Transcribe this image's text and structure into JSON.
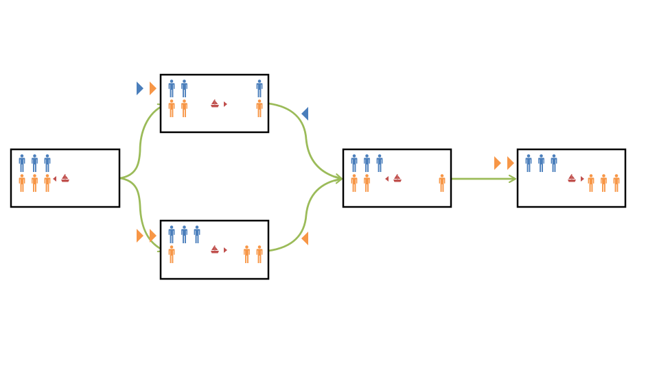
{
  "colors": {
    "missionary": "#4a7ebb",
    "cannibal": "#f79646",
    "boat": "#c0504d",
    "arrow": "#9bbb59",
    "border": "#000000",
    "background": "#ffffff"
  },
  "icons": {
    "missionary": "person-icon",
    "cannibal": "person-icon",
    "boat": "sailboat-icon",
    "direction": "triangle-icon"
  },
  "states": [
    {
      "id": "start",
      "left_bank": {
        "missionaries": 3,
        "cannibals": 3
      },
      "right_bank": {
        "missionaries": 0,
        "cannibals": 0
      },
      "boat_side": "left",
      "boat_heading": "left"
    },
    {
      "id": "upper",
      "left_bank": {
        "missionaries": 2,
        "cannibals": 2
      },
      "right_bank": {
        "missionaries": 1,
        "cannibals": 1
      },
      "boat_side": "right",
      "boat_heading": "right"
    },
    {
      "id": "lower",
      "left_bank": {
        "missionaries": 3,
        "cannibals": 1
      },
      "right_bank": {
        "missionaries": 0,
        "cannibals": 2
      },
      "boat_side": "right",
      "boat_heading": "right"
    },
    {
      "id": "merged",
      "left_bank": {
        "missionaries": 3,
        "cannibals": 2
      },
      "right_bank": {
        "missionaries": 0,
        "cannibals": 1
      },
      "boat_side": "left",
      "boat_heading": "left"
    },
    {
      "id": "final",
      "left_bank": {
        "missionaries": 3,
        "cannibals": 0
      },
      "right_bank": {
        "missionaries": 0,
        "cannibals": 3
      },
      "boat_side": "right",
      "boat_heading": "right"
    }
  ],
  "transitions": [
    {
      "from": "start",
      "to": "upper",
      "moved": [
        "missionary",
        "cannibal"
      ],
      "direction": "right"
    },
    {
      "from": "start",
      "to": "lower",
      "moved": [
        "cannibal",
        "cannibal"
      ],
      "direction": "right"
    },
    {
      "from": "upper",
      "to": "merged",
      "moved": [
        "missionary"
      ],
      "direction": "left"
    },
    {
      "from": "lower",
      "to": "merged",
      "moved": [
        "cannibal"
      ],
      "direction": "left"
    },
    {
      "from": "merged",
      "to": "final",
      "moved": [
        "cannibal",
        "cannibal"
      ],
      "direction": "right"
    }
  ]
}
